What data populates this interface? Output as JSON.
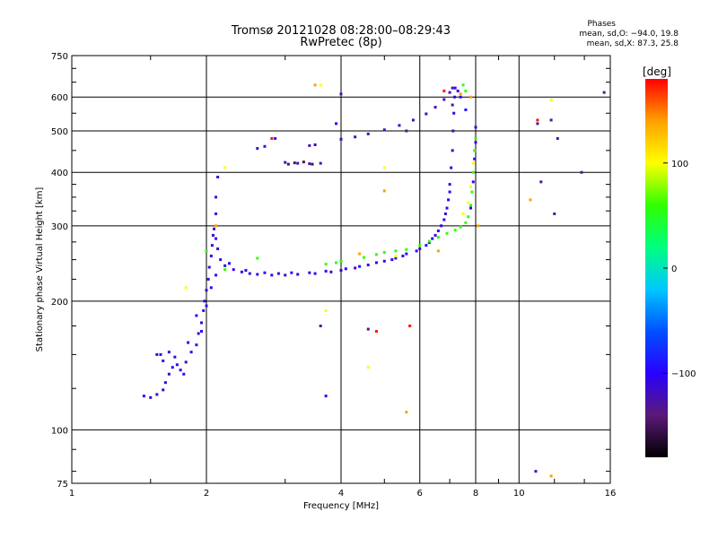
{
  "header": {
    "title_line1": "Tromsø 20121028 08:28:00–08:29:43",
    "title_line2": "RwPretec (8p)",
    "info_label": "Phases",
    "info_o": "mean, sd,O: −94.0, 19.8",
    "info_x": "mean, sd,X:  87.3, 25.8"
  },
  "chart_data": {
    "type": "scatter",
    "title": "Tromsø 20121028 08:28:00–08:29:43",
    "subtitle": "RwPretec (8p)",
    "xlabel": "Frequency [MHz]",
    "ylabel": "Stationary phase Virtual Height [km]",
    "x_scale": "log",
    "y_scale": "log",
    "xlim": [
      1,
      16
    ],
    "ylim": [
      75,
      750
    ],
    "x_ticks": [
      1,
      2,
      4,
      6,
      8,
      10,
      16
    ],
    "y_ticks": [
      75,
      100,
      200,
      300,
      400,
      500,
      600,
      750
    ],
    "x_tick_labels": [
      "1",
      "2",
      "4",
      "6",
      "8",
      "10",
      "16"
    ],
    "y_tick_labels": [
      "75",
      "100",
      "200",
      "300",
      "400",
      "500",
      "600",
      "750"
    ],
    "grid": true,
    "colorbar": {
      "label": "[deg]",
      "range": [
        -180,
        180
      ],
      "tick_values": [
        100,
        0,
        -100
      ],
      "tick_labels": [
        "100",
        "0",
        "−100"
      ],
      "colormap": [
        "#000000",
        "#5a1a78",
        "#2a00ff",
        "#0050ff",
        "#00c8ff",
        "#00ff80",
        "#30ff00",
        "#ffff00",
        "#ffa000",
        "#ff0000"
      ]
    },
    "series": [
      {
        "phase": -110,
        "points": [
          [
            1.5,
            119
          ],
          [
            1.55,
            121
          ],
          [
            1.6,
            124
          ],
          [
            1.62,
            129
          ],
          [
            1.65,
            135
          ],
          [
            1.6,
            145
          ],
          [
            1.58,
            150
          ],
          [
            1.65,
            152
          ],
          [
            1.7,
            148
          ],
          [
            1.72,
            142
          ],
          [
            1.75,
            138
          ],
          [
            1.8,
            144
          ],
          [
            1.85,
            152
          ],
          [
            1.9,
            158
          ],
          [
            1.92,
            168
          ],
          [
            1.95,
            178
          ],
          [
            1.97,
            190
          ],
          [
            1.98,
            200
          ],
          [
            2.0,
            212
          ],
          [
            2.02,
            225
          ],
          [
            2.03,
            240
          ],
          [
            2.05,
            255
          ],
          [
            2.06,
            270
          ],
          [
            2.07,
            285
          ],
          [
            2.08,
            295
          ],
          [
            2.1,
            280
          ],
          [
            2.12,
            265
          ],
          [
            2.15,
            250
          ],
          [
            2.2,
            242
          ],
          [
            2.3,
            237
          ],
          [
            2.4,
            234
          ],
          [
            2.5,
            232
          ],
          [
            2.6,
            231
          ],
          [
            2.8,
            230
          ],
          [
            3.0,
            230
          ],
          [
            3.2,
            231
          ],
          [
            3.5,
            232
          ],
          [
            3.8,
            234
          ],
          [
            4.0,
            236
          ],
          [
            4.3,
            239
          ],
          [
            4.6,
            243
          ],
          [
            5.0,
            248
          ],
          [
            5.3,
            252
          ],
          [
            5.6,
            258
          ],
          [
            6.0,
            265
          ],
          [
            6.3,
            274
          ],
          [
            6.5,
            285
          ],
          [
            6.7,
            300
          ],
          [
            6.85,
            320
          ],
          [
            6.95,
            345
          ],
          [
            7.0,
            375
          ],
          [
            7.05,
            410
          ],
          [
            7.1,
            450
          ],
          [
            7.12,
            500
          ],
          [
            7.15,
            550
          ],
          [
            7.18,
            600
          ],
          [
            7.2,
            630
          ],
          [
            7.8,
            330
          ],
          [
            7.9,
            380
          ],
          [
            7.95,
            430
          ],
          [
            8.0,
            470
          ],
          [
            8.0,
            510
          ],
          [
            2.1,
            320
          ],
          [
            2.1,
            350
          ],
          [
            2.12,
            390
          ]
        ]
      },
      {
        "phase": -120,
        "points": [
          [
            4.0,
            478
          ],
          [
            4.3,
            484
          ],
          [
            4.6,
            492
          ],
          [
            5.0,
            503
          ],
          [
            5.4,
            515
          ],
          [
            5.8,
            530
          ],
          [
            6.2,
            548
          ],
          [
            6.5,
            568
          ],
          [
            6.8,
            592
          ],
          [
            7.0,
            615
          ],
          [
            7.1,
            630
          ],
          [
            3.0,
            422
          ],
          [
            3.2,
            420
          ],
          [
            3.4,
            419
          ],
          [
            3.6,
            420
          ],
          [
            2.6,
            455
          ],
          [
            2.7,
            460
          ],
          [
            3.4,
            462
          ],
          [
            3.5,
            464
          ]
        ]
      },
      {
        "phase": -95,
        "points": [
          [
            1.45,
            120
          ],
          [
            1.55,
            150
          ],
          [
            1.68,
            140
          ],
          [
            1.78,
            135
          ],
          [
            1.82,
            160
          ],
          [
            1.9,
            185
          ],
          [
            1.95,
            170
          ],
          [
            2.0,
            195
          ],
          [
            2.05,
            215
          ],
          [
            2.1,
            230
          ],
          [
            2.25,
            245
          ],
          [
            2.45,
            236
          ],
          [
            2.7,
            233
          ],
          [
            2.9,
            232
          ],
          [
            3.1,
            233
          ],
          [
            3.4,
            233
          ],
          [
            3.7,
            235
          ],
          [
            4.1,
            238
          ],
          [
            4.4,
            241
          ],
          [
            4.8,
            246
          ],
          [
            5.2,
            250
          ],
          [
            5.5,
            255
          ],
          [
            5.9,
            262
          ],
          [
            6.2,
            270
          ],
          [
            6.4,
            280
          ],
          [
            6.6,
            292
          ],
          [
            6.8,
            310
          ],
          [
            6.9,
            330
          ],
          [
            7.0,
            360
          ],
          [
            7.3,
            620
          ],
          [
            7.4,
            600
          ],
          [
            7.6,
            560
          ],
          [
            2.85,
            480
          ],
          [
            3.7,
            120
          ],
          [
            3.9,
            520
          ]
        ]
      },
      {
        "phase": 60,
        "points": [
          [
            4.5,
            253
          ],
          [
            4.8,
            257
          ],
          [
            5.0,
            260
          ],
          [
            5.3,
            262
          ],
          [
            5.6,
            264
          ],
          [
            6.0,
            270
          ],
          [
            6.3,
            276
          ],
          [
            6.6,
            282
          ],
          [
            6.9,
            288
          ],
          [
            7.2,
            293
          ],
          [
            7.4,
            298
          ],
          [
            7.6,
            305
          ],
          [
            7.7,
            315
          ],
          [
            7.8,
            335
          ],
          [
            7.85,
            360
          ],
          [
            7.9,
            400
          ],
          [
            7.95,
            450
          ],
          [
            8.0,
            480
          ],
          [
            7.5,
            640
          ],
          [
            7.6,
            620
          ],
          [
            4.0,
            248
          ],
          [
            3.9,
            246
          ],
          [
            3.7,
            244
          ],
          [
            2.6,
            252
          ],
          [
            2.2,
            237
          ],
          [
            2.0,
            262
          ]
        ]
      },
      {
        "phase": 100,
        "points": [
          [
            7.5,
            320
          ],
          [
            7.7,
            340
          ],
          [
            7.8,
            370
          ],
          [
            7.9,
            420
          ],
          [
            3.6,
            640
          ],
          [
            3.7,
            190
          ],
          [
            4.6,
            140
          ],
          [
            11.8,
            590
          ],
          [
            2.2,
            410
          ],
          [
            1.8,
            215
          ],
          [
            5.3,
            255
          ],
          [
            5.0,
            410
          ]
        ]
      },
      {
        "phase": 140,
        "points": [
          [
            7.4,
            610
          ],
          [
            7.8,
            600
          ],
          [
            3.5,
            640
          ],
          [
            5.6,
            110
          ],
          [
            11.8,
            78
          ],
          [
            4.4,
            258
          ],
          [
            5.0,
            362
          ],
          [
            6.6,
            262
          ],
          [
            10.6,
            345
          ],
          [
            8.1,
            300
          ],
          [
            2.1,
            300
          ]
        ]
      },
      {
        "phase": 175,
        "points": [
          [
            4.8,
            170
          ],
          [
            11.0,
            530
          ],
          [
            5.7,
            175
          ],
          [
            2.8,
            480
          ],
          [
            6.8,
            620
          ]
        ]
      },
      {
        "phase": -130,
        "points": [
          [
            11.0,
            520
          ],
          [
            11.2,
            380
          ],
          [
            12.2,
            480
          ],
          [
            12.0,
            320
          ],
          [
            11.8,
            530
          ],
          [
            13.8,
            400
          ],
          [
            10.9,
            80
          ],
          [
            15.5,
            615
          ],
          [
            4.0,
            610
          ],
          [
            4.6,
            172
          ],
          [
            3.6,
            175
          ],
          [
            7.1,
            575
          ],
          [
            5.6,
            500
          ]
        ]
      },
      {
        "phase": -150,
        "points": [
          [
            3.05,
            418
          ],
          [
            3.15,
            421
          ],
          [
            3.3,
            423
          ],
          [
            3.45,
            418
          ]
        ]
      }
    ]
  }
}
